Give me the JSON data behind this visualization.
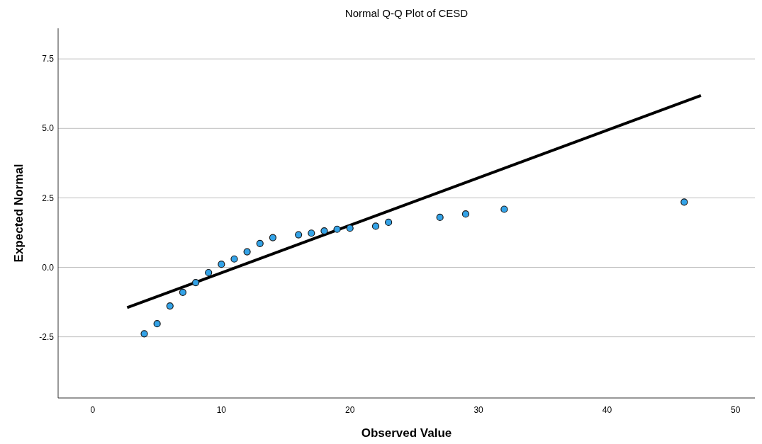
{
  "chart_data": {
    "type": "scatter",
    "title": "Normal Q-Q Plot of CESD",
    "xlabel": "Observed Value",
    "ylabel": "Expected Normal",
    "xlim": [
      -2.7,
      51.5
    ],
    "ylim": [
      -4.7,
      8.6
    ],
    "xticks": [
      0,
      10,
      20,
      30,
      40,
      50
    ],
    "yticks": [
      {
        "value": -2.5,
        "label": "-2.5"
      },
      {
        "value": 0,
        "label": "0.0"
      },
      {
        "value": 2.5,
        "label": "2.5"
      },
      {
        "value": 5,
        "label": "5.0"
      },
      {
        "value": 7.5,
        "label": "7.5"
      }
    ],
    "grid": "y",
    "series": [
      {
        "marker": "circle",
        "color": "#33a3e8",
        "x": [
          4,
          5,
          6,
          7,
          8,
          9,
          10,
          11,
          12,
          13,
          14,
          16,
          17,
          18,
          19,
          20,
          22,
          23,
          27,
          29,
          32,
          46
        ],
        "values": [
          -2.39,
          -2.03,
          -1.39,
          -0.9,
          -0.55,
          -0.19,
          0.11,
          0.3,
          0.56,
          0.86,
          1.07,
          1.17,
          1.23,
          1.31,
          1.37,
          1.41,
          1.48,
          1.62,
          1.8,
          1.92,
          2.09,
          2.35
        ]
      },
      {
        "type": "line",
        "color": "#000000",
        "x": [
          2.67,
          47.3
        ],
        "values": [
          -1.45,
          6.18
        ]
      }
    ]
  }
}
